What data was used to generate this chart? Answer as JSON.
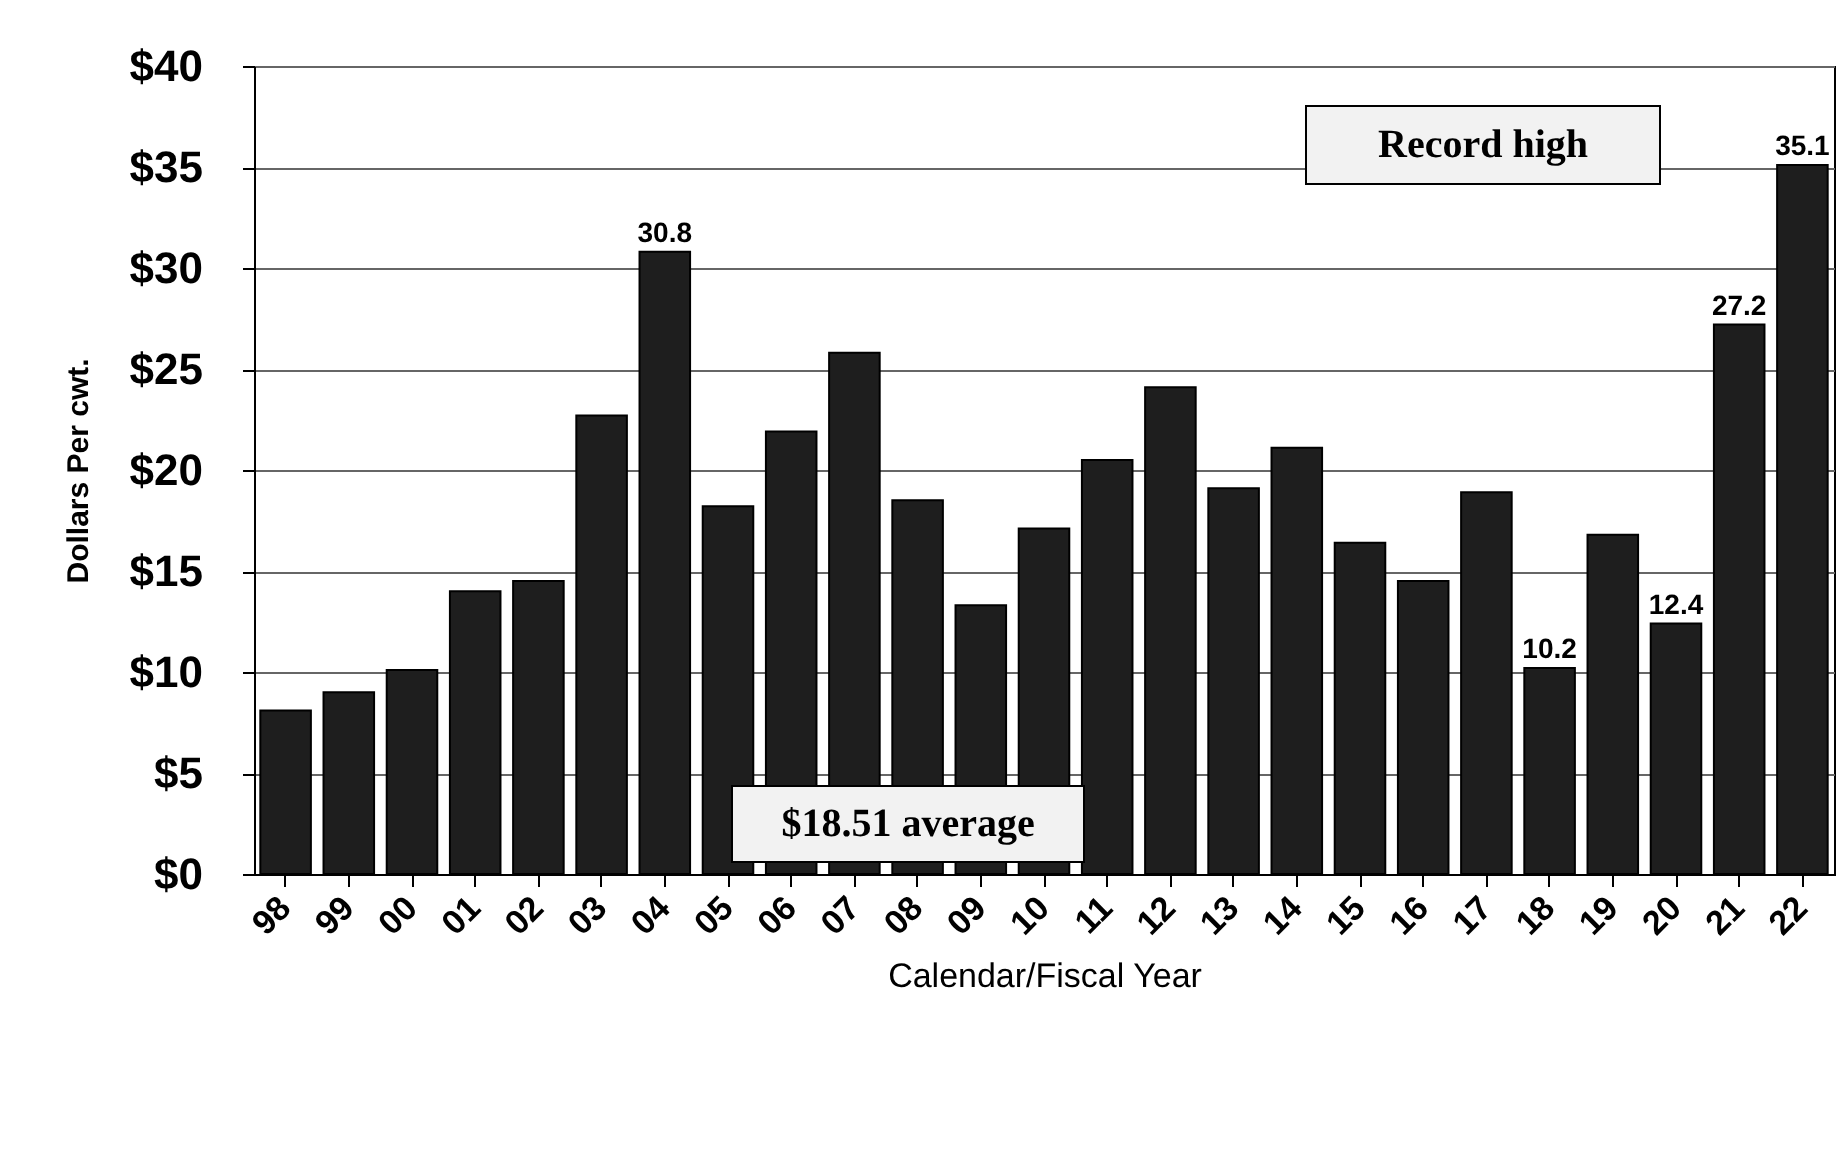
{
  "chart_data": {
    "type": "bar",
    "xlabel": "Calendar/Fiscal Year",
    "ylabel": "Dollars Per cwt.",
    "categories": [
      "98",
      "99",
      "00",
      "01",
      "02",
      "03",
      "04",
      "05",
      "06",
      "07",
      "08",
      "09",
      "10",
      "11",
      "12",
      "13",
      "14",
      "15",
      "16",
      "17",
      "18",
      "19",
      "20",
      "21",
      "22"
    ],
    "values": [
      8.1,
      9.0,
      10.1,
      14.0,
      14.5,
      22.7,
      30.8,
      18.2,
      21.9,
      25.8,
      18.5,
      13.3,
      17.1,
      20.5,
      24.1,
      19.1,
      21.1,
      16.4,
      14.5,
      18.9,
      10.2,
      16.8,
      12.4,
      27.2,
      35.1
    ],
    "value_labels": [
      null,
      null,
      null,
      null,
      null,
      null,
      "30.8",
      null,
      null,
      null,
      null,
      null,
      null,
      null,
      null,
      null,
      null,
      null,
      null,
      null,
      "10.2",
      null,
      "12.4",
      "27.2",
      "35.1"
    ],
    "color": "#1e1e1e",
    "ylim": [
      0,
      40
    ],
    "yticks": [
      {
        "value": 0,
        "label": "$0"
      },
      {
        "value": 5,
        "label": "$5"
      },
      {
        "value": 10,
        "label": "$10"
      },
      {
        "value": 15,
        "label": "$15"
      },
      {
        "value": 20,
        "label": "$20"
      },
      {
        "value": 25,
        "label": "$25"
      },
      {
        "value": 30,
        "label": "$30"
      },
      {
        "value": 35,
        "label": "$35"
      },
      {
        "value": 40,
        "label": "$40"
      }
    ],
    "grid": "y",
    "annotations": [
      "Record high",
      "$18.51 average"
    ]
  }
}
